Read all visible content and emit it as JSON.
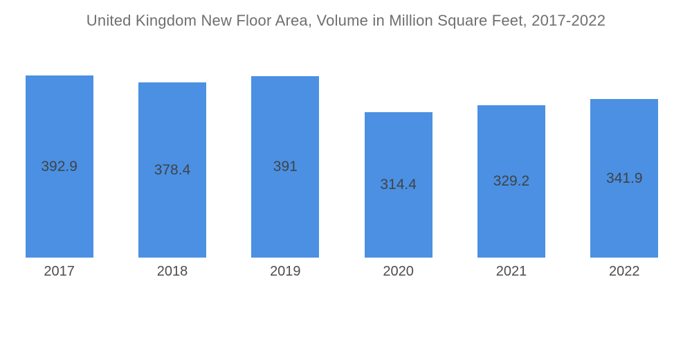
{
  "chart_data": {
    "type": "bar",
    "title": "United Kingdom New Floor Area, Volume in Million Square Feet, 2017-2022",
    "categories": [
      "2017",
      "2018",
      "2019",
      "2020",
      "2021",
      "2022"
    ],
    "values": [
      392.9,
      378.4,
      391,
      314.4,
      329.2,
      341.9
    ],
    "value_labels": [
      "392.9",
      "378.4",
      "391",
      "314.4",
      "329.2",
      "341.9"
    ],
    "xlabel": "",
    "ylabel": "",
    "ylim": [
      0,
      430
    ],
    "grid": false,
    "legend": "none",
    "bar_color": "#4B90E2",
    "title_color": "#6F6F6F",
    "value_label_color": "#3F4347",
    "axis_label_color": "#4C4C4C",
    "background_color": "#FFFFFF"
  }
}
